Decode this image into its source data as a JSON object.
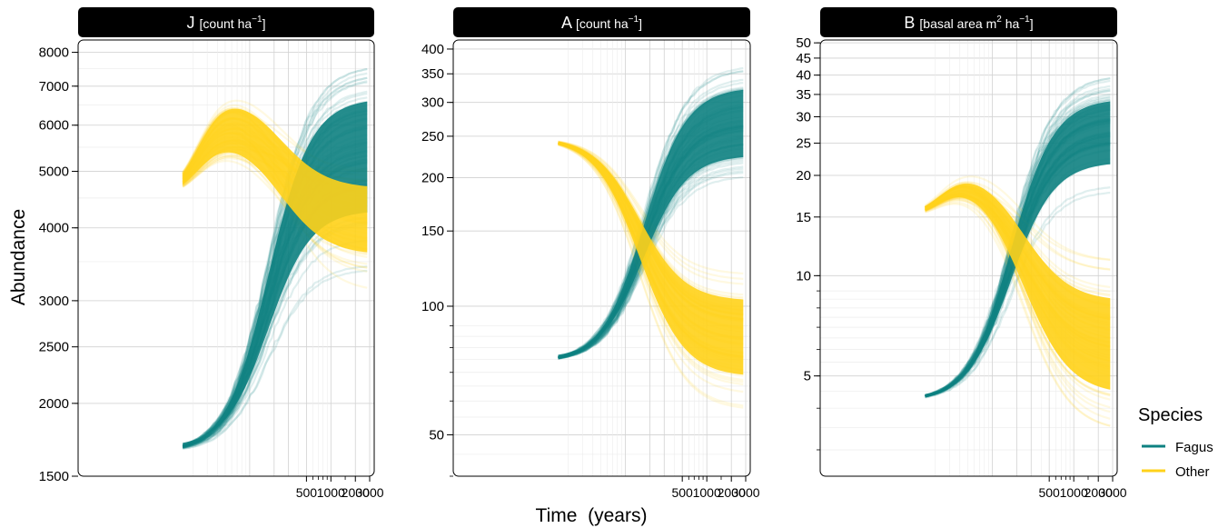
{
  "figure": {
    "y_axis_title": "Abundance",
    "x_axis_title": "Time  (years)"
  },
  "legend": {
    "title": "Species",
    "items": [
      {
        "label": "Fagus",
        "color": "#0e8181"
      },
      {
        "label": "Other",
        "color": "#ffd21a"
      }
    ]
  },
  "chart_data": [
    {
      "type": "line",
      "panel": "J",
      "strip": {
        "main": "J",
        "unit": "[count ha",
        "exp": "−1",
        "close": "]"
      },
      "y_scale": "log",
      "x_scale": "log",
      "ylim": [
        1500,
        8400
      ],
      "xlim": [
        1,
        3000
      ],
      "y_ticks": [
        1500,
        2000,
        2500,
        3000,
        4000,
        5000,
        6000,
        7000,
        8000
      ],
      "y_tick_labels": [
        "1500",
        "2000",
        "2500",
        "3000",
        "4000",
        "5000",
        "6000",
        "7000",
        "8000"
      ],
      "x_ticks": [
        500,
        1000,
        2000,
        3000
      ],
      "x_tick_labels": [
        "500",
        "1000",
        "2000",
        "3000"
      ],
      "series": [
        {
          "name": "Fagus",
          "start": 1650,
          "end_low": 3400,
          "end_mid": 5700,
          "end_high": 7600
        },
        {
          "name": "Other",
          "start": 4500,
          "peak_low": 5500,
          "peak_high": 7100,
          "end_low": 3100,
          "end_mid": 4300,
          "end_high": 5000
        }
      ]
    },
    {
      "type": "line",
      "panel": "A",
      "strip": {
        "main": "A",
        "unit": "[count ha",
        "exp": "−1",
        "close": "]"
      },
      "y_scale": "log",
      "x_scale": "log",
      "ylim": [
        40,
        420
      ],
      "xlim": [
        1,
        3000
      ],
      "y_ticks": [
        50,
        100,
        150,
        200,
        250,
        300,
        350,
        400
      ],
      "y_tick_labels": [
        "50",
        "100",
        "150",
        "200",
        "250",
        "300",
        "350",
        "400"
      ],
      "x_ticks": [
        500,
        1000,
        2000,
        3000
      ],
      "x_tick_labels": [
        "500",
        "1000",
        "2000",
        "3000"
      ],
      "series": [
        {
          "name": "Fagus",
          "start": 74,
          "end_low": 195,
          "end_mid": 270,
          "end_high": 380
        },
        {
          "name": "Other",
          "start": 248,
          "end_low": 57,
          "end_mid": 85,
          "end_high": 120
        }
      ]
    },
    {
      "type": "line",
      "panel": "B",
      "strip": {
        "main": "B",
        "unit": "[basal area m",
        "exp": "2",
        "unit2": "ha",
        "exp2": "−1",
        "close": "]"
      },
      "y_scale": "log",
      "x_scale": "log",
      "ylim": [
        2.5,
        51
      ],
      "xlim": [
        1,
        3000
      ],
      "y_ticks": [
        5,
        10,
        15,
        20,
        25,
        30,
        35,
        40,
        45,
        50
      ],
      "y_tick_labels": [
        "5",
        "10",
        "15",
        "20",
        "25",
        "30",
        "35",
        "40",
        "45",
        "50"
      ],
      "x_ticks": [
        500,
        1000,
        2000,
        3000
      ],
      "x_tick_labels": [
        "500",
        "1000",
        "2000",
        "3000"
      ],
      "series": [
        {
          "name": "Fagus",
          "start": 4.2,
          "end_low": 18,
          "end_mid": 28,
          "end_high": 40
        },
        {
          "name": "Other",
          "start": 15,
          "peak_low": 19,
          "peak_high": 22,
          "end_low": 3.4,
          "end_mid": 6,
          "end_high": 11
        }
      ]
    }
  ]
}
